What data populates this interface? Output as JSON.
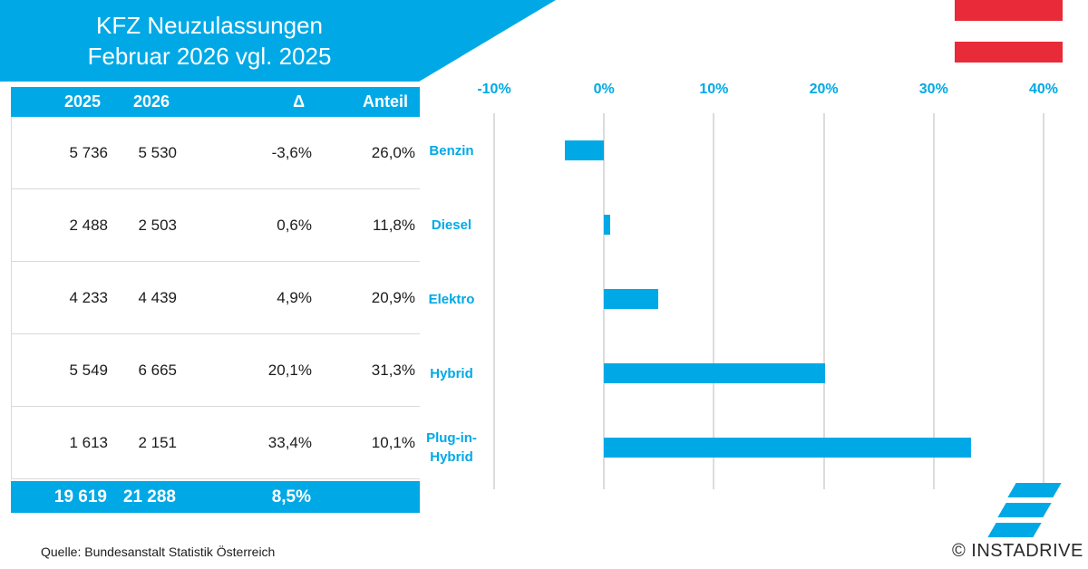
{
  "header": {
    "title_line1": "KFZ Neuzulassungen",
    "title_line2": "Februar 2026 vgl. 2025"
  },
  "table": {
    "headers": {
      "col2025": "2025",
      "col2026": "2026",
      "delta": "Δ",
      "share": "Anteil"
    },
    "rows": [
      {
        "fuel": "Benzin",
        "y2025": "5 736",
        "y2026": "5 530",
        "delta": "-3,6%",
        "share": "26,0%"
      },
      {
        "fuel": "Diesel",
        "y2025": "2 488",
        "y2026": "2 503",
        "delta": "0,6%",
        "share": "11,8%"
      },
      {
        "fuel": "Elektro",
        "y2025": "4 233",
        "y2026": "4 439",
        "delta": "4,9%",
        "share": "20,9%"
      },
      {
        "fuel": "Hybrid",
        "y2025": "5 549",
        "y2026": "6 665",
        "delta": "20,1%",
        "share": "31,3%"
      },
      {
        "fuel": "Plug-in-Hybrid",
        "y2025": "1 613",
        "y2026": "2 151",
        "delta": "33,4%",
        "share": "10,1%"
      }
    ],
    "total": {
      "y2025": "19 619",
      "y2026": "21 288",
      "delta": "8,5%"
    }
  },
  "chart_data": {
    "type": "bar",
    "orientation": "horizontal",
    "title": "KFZ Neuzulassungen Februar 2026 vgl. 2025",
    "categories": [
      "Benzin",
      "Diesel",
      "Elektro",
      "Hybrid",
      "Plug-in-Hybrid"
    ],
    "values": [
      -3.6,
      0.6,
      4.9,
      20.1,
      33.4
    ],
    "value_labels": [
      "-3,6%",
      "0,6%",
      "4,9%",
      "20,1%",
      "33,4%"
    ],
    "unit": "%",
    "xlim": [
      -10,
      40
    ],
    "x_tick_labels": [
      "-10%",
      "0%",
      "10%",
      "20%",
      "30%",
      "40%"
    ],
    "grid": true,
    "legend": false,
    "bar_color": "#00A9E6"
  },
  "footer": {
    "source": "Quelle: Bundesanstalt Statistik Österreich"
  },
  "branding": {
    "copyright": "© INSTADRIVE"
  },
  "colors": {
    "brand_cyan": "#00A9E6",
    "flag_red": "#E92A38",
    "grid_gray": "#DCDCDC",
    "divider_gray": "#D9D9D9",
    "text_dark": "#1C1C1C"
  }
}
